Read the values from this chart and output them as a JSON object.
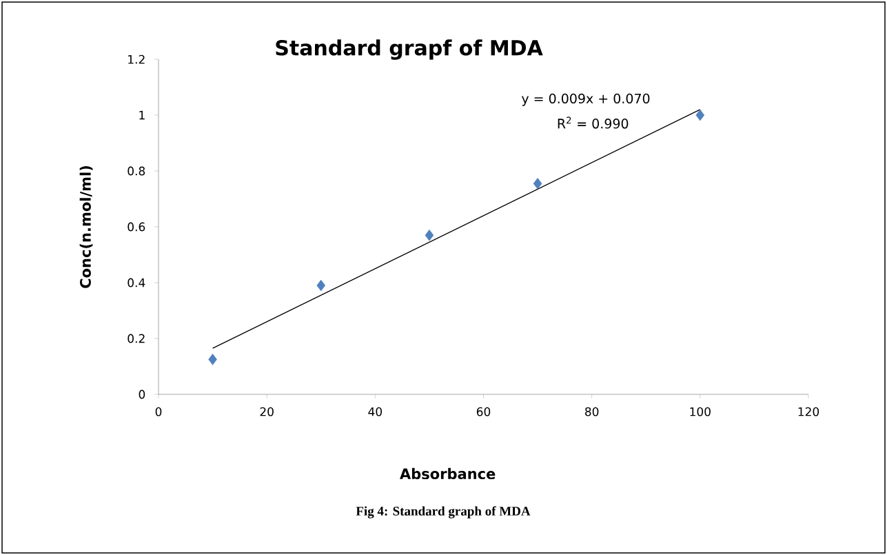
{
  "chart_data": {
    "type": "scatter",
    "title": "Standard grapf of MDA",
    "xlabel": "Absorbance",
    "ylabel": "Conc(n.mol/ml)",
    "annotations": [
      "y = 0.009x + 0.070",
      "R$^{2}$ = 0.990",
      "Fig 4: Standard graph of MDA"
    ],
    "series": [
      {
        "color": "#4f81bd",
        "marker": "diamond",
        "x": [
          10,
          30,
          50,
          70,
          100
        ],
        "values": [
          0.125,
          0.39,
          0.57,
          0.755,
          1.0
        ]
      },
      {
        "type": "line",
        "color": "#000000",
        "line_style": "solid",
        "x": [
          10,
          100
        ],
        "values": [
          0.165,
          1.02
        ]
      }
    ],
    "xlim": [
      0,
      120
    ],
    "xticks": [
      0,
      20,
      40,
      60,
      80,
      100,
      120
    ],
    "ylim": [
      0,
      1.2
    ],
    "yticks": [
      0,
      0.2,
      0.4,
      0.6,
      0.8,
      1,
      1.2
    ],
    "grid": false
  }
}
